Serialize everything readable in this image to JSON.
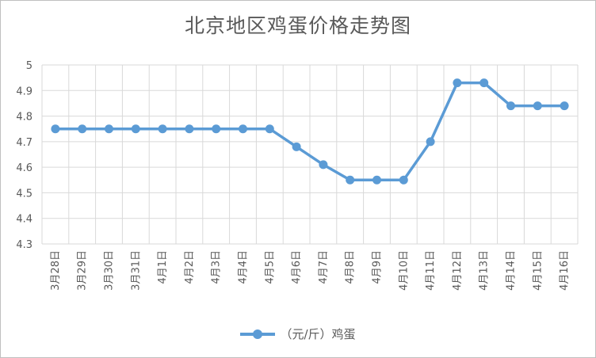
{
  "chart_data": {
    "type": "line",
    "title": "北京地区鸡蛋价格走势图",
    "xlabel": "",
    "ylabel": "",
    "ylim": [
      4.3,
      5
    ],
    "yticks": [
      "4.3",
      "4.4",
      "4.5",
      "4.6",
      "4.7",
      "4.8",
      "4.9",
      "5"
    ],
    "grid": true,
    "legend_position": "bottom",
    "color": "#5b9bd5",
    "categories": [
      "3月28日",
      "3月29日",
      "3月30日",
      "3月31日",
      "4月1日",
      "4月2日",
      "4月3日",
      "4月4日",
      "4月5日",
      "4月6日",
      "4月7日",
      "4月8日",
      "4月9日",
      "4月10日",
      "4月11日",
      "4月12日",
      "4月13日",
      "4月14日",
      "4月15日",
      "4月16日"
    ],
    "series": [
      {
        "name": "（元/斤）鸡蛋",
        "values": [
          4.75,
          4.75,
          4.75,
          4.75,
          4.75,
          4.75,
          4.75,
          4.75,
          4.75,
          4.68,
          4.61,
          4.55,
          4.55,
          4.55,
          4.7,
          4.93,
          4.93,
          4.84,
          4.84,
          4.84
        ]
      }
    ]
  }
}
